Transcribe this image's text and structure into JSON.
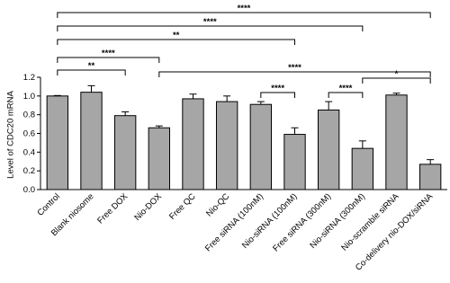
{
  "chart_data": {
    "type": "bar",
    "y_label": "Level of CDC20 mRNA",
    "categories": [
      "Control",
      "Blank niosome",
      "Free DOX",
      "Nio-DOX",
      "Free QC",
      "Nio-QC",
      "Free siRNA (100nM)",
      "Nio-siRNA (100nM)",
      "Free siRNA (300nM)",
      "Nio-siRNA (300nM)",
      "Nio-scramble siRNA",
      "Co-delivery nio-DOX/siRNA"
    ],
    "values": [
      1.0,
      1.04,
      0.79,
      0.66,
      0.97,
      0.94,
      0.91,
      0.59,
      0.85,
      0.44,
      1.01,
      0.27
    ],
    "errors": [
      0.005,
      0.07,
      0.04,
      0.02,
      0.05,
      0.06,
      0.03,
      0.07,
      0.09,
      0.08,
      0.02,
      0.05
    ],
    "color": "#a6a6a6",
    "ylim": [
      0,
      1.2
    ],
    "yticks": [
      {
        "value": 0,
        "label": "0.0"
      },
      {
        "value": 0.2,
        "label": "0.2"
      },
      {
        "value": 0.4,
        "label": "0.4"
      },
      {
        "value": 0.6,
        "label": "0.6"
      },
      {
        "value": 0.8,
        "label": "0.8"
      },
      {
        "value": 1,
        "label": "1.0"
      },
      {
        "value": 1.2,
        "label": "1.2"
      }
    ],
    "comparisons": [
      {
        "from": 0,
        "to": 11,
        "label": "****"
      },
      {
        "from": 0,
        "to": 9,
        "label": "****"
      },
      {
        "from": 0,
        "to": 7,
        "label": "**"
      },
      {
        "from": 0,
        "to": 3,
        "label": "****"
      },
      {
        "from": 0,
        "to": 2,
        "label": "**"
      },
      {
        "from": 3,
        "to": 11,
        "label": "****"
      },
      {
        "from": 6,
        "to": 7,
        "label": "****"
      },
      {
        "from": 8,
        "to": 9,
        "label": "****"
      },
      {
        "from": 9,
        "to": 11,
        "label": "*"
      }
    ]
  }
}
